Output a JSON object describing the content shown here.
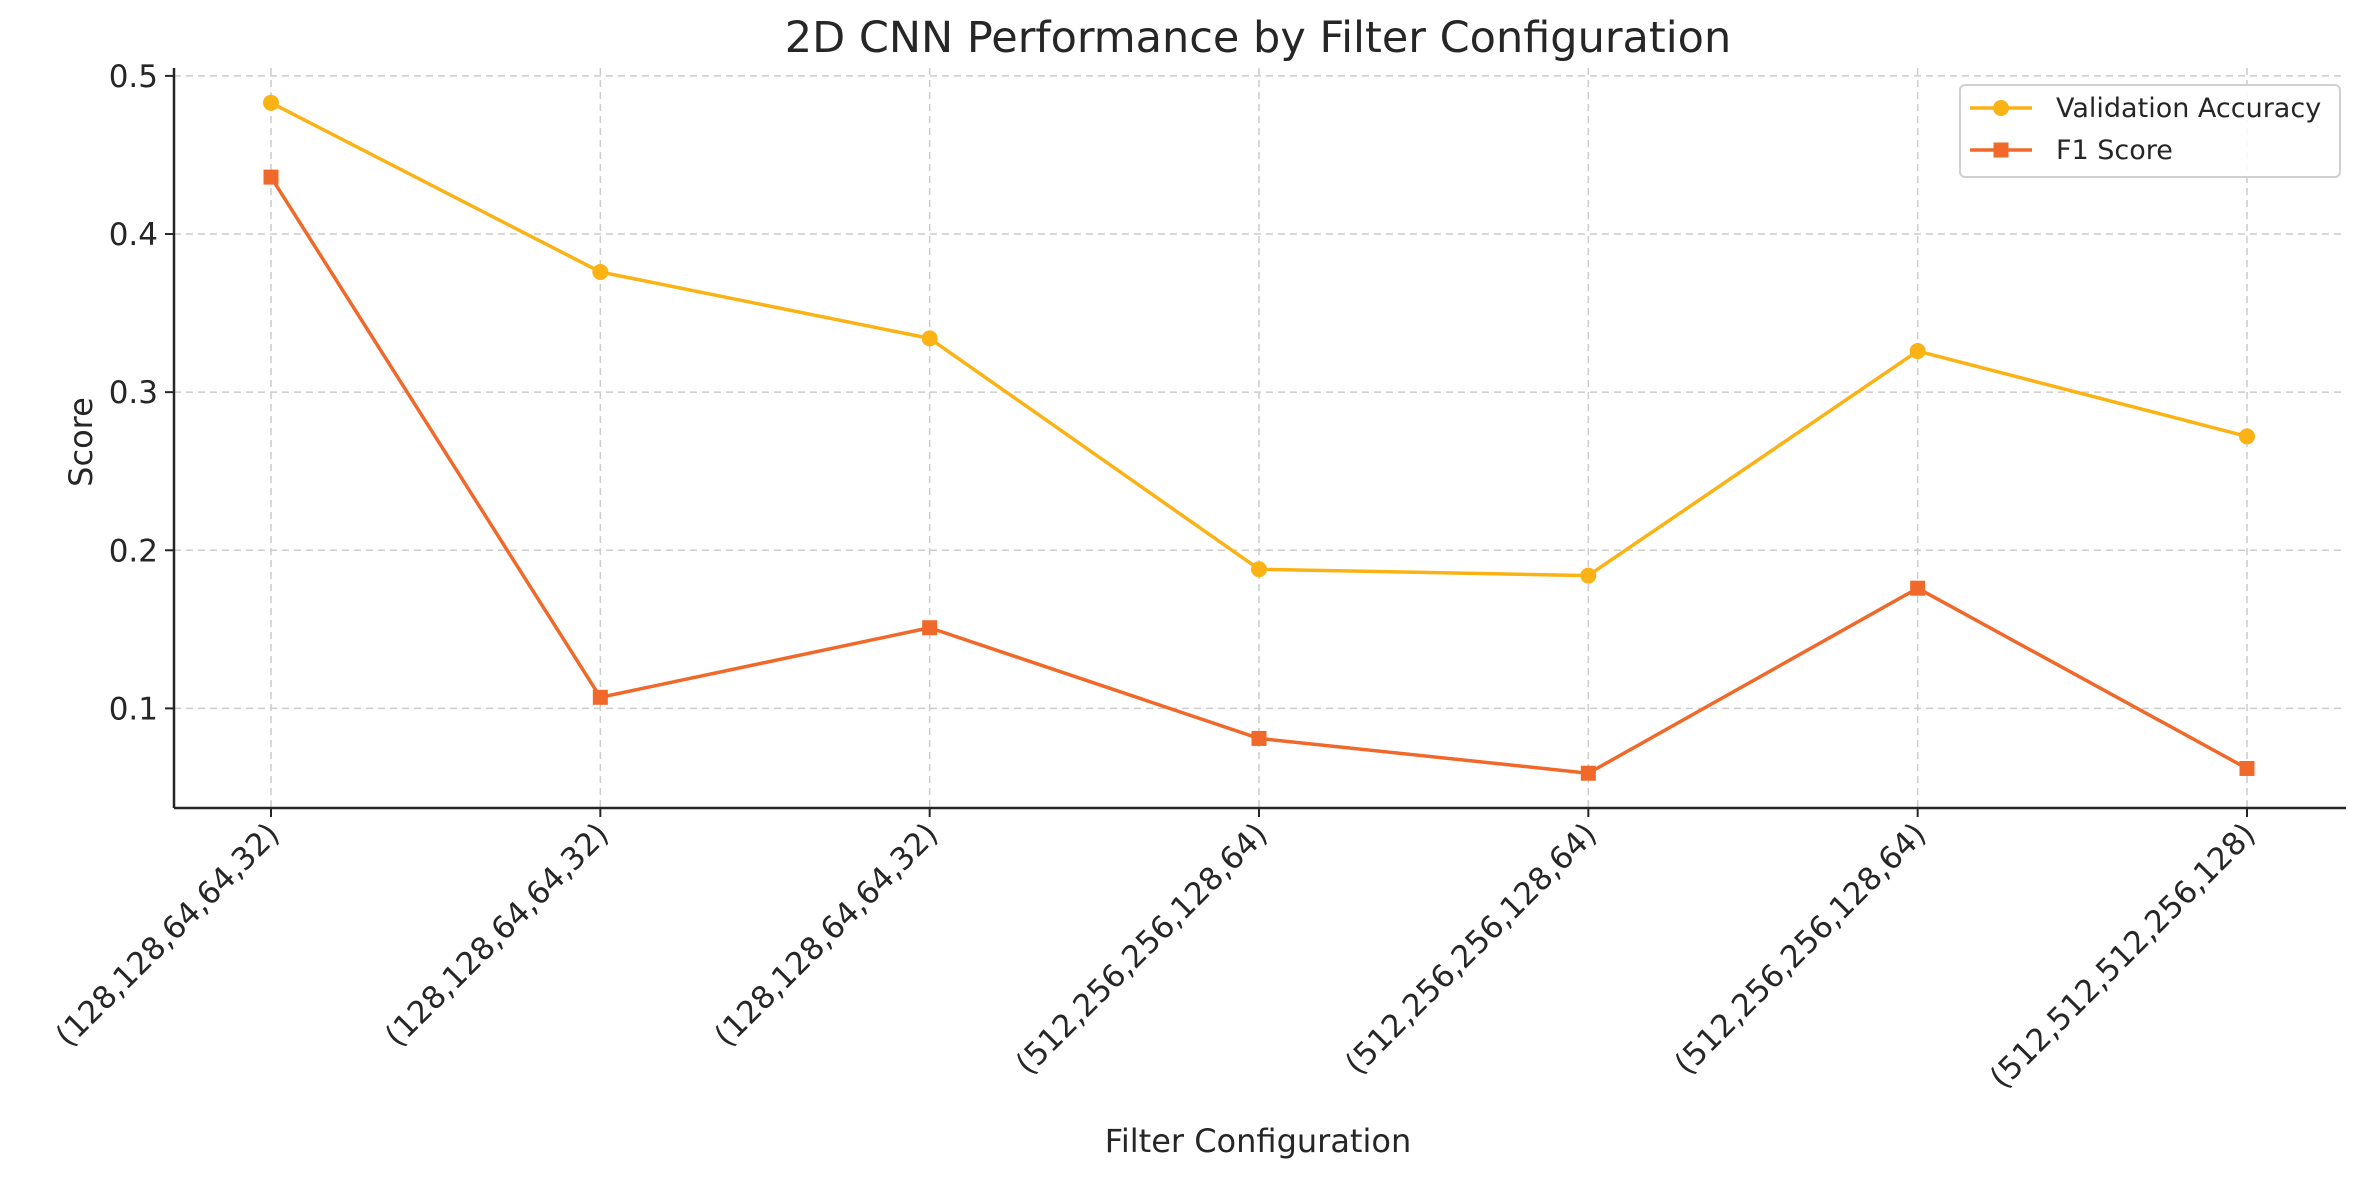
{
  "chart_data": {
    "type": "line",
    "title": "2D CNN Performance by Filter Configuration",
    "xlabel": "Filter Configuration",
    "ylabel": "Score",
    "categories": [
      "(128,128,64,64,32)",
      "(128,128,64,64,32)",
      "(128,128,64,64,32)",
      "(512,256,256,128,64)",
      "(512,256,256,128,64)",
      "(512,256,256,128,64)",
      "(512,512,512,256,128)"
    ],
    "ylim": [
      0.037,
      0.505
    ],
    "yticks": [
      0.1,
      0.2,
      0.3,
      0.4,
      0.5
    ],
    "ytick_labels": [
      "0.1",
      "0.2",
      "0.3",
      "0.4",
      "0.5"
    ],
    "grid": true,
    "legend_position": "top-right",
    "series": [
      {
        "name": "Validation Accuracy",
        "values": [
          0.483,
          0.376,
          0.334,
          0.188,
          0.184,
          0.326,
          0.272
        ],
        "color": "#FBB215",
        "marker": "circle"
      },
      {
        "name": "F1 Score",
        "values": [
          0.436,
          0.107,
          0.151,
          0.081,
          0.059,
          0.176,
          0.062
        ],
        "color": "#F0682A",
        "marker": "square"
      }
    ]
  }
}
